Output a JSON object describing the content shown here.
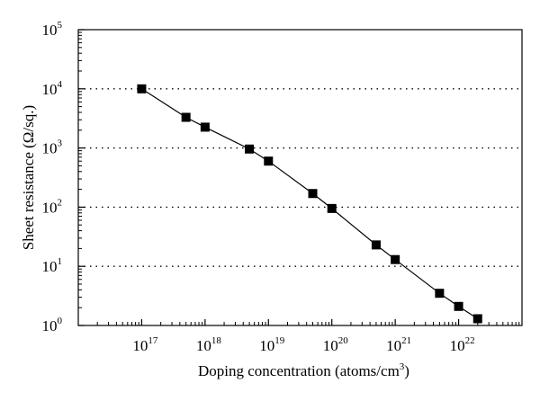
{
  "chart_data": {
    "type": "line",
    "xlabel": "Doping concentration (atoms/cm",
    "xlabel_unit_exp": "3",
    "xlabel_close": ")",
    "ylabel": "Sheet resistance (Ω/sq.)",
    "x_scale": "log",
    "y_scale": "log",
    "xlim": [
      1e+16,
      1e+23
    ],
    "ylim": [
      1,
      100000
    ],
    "x_ticks": [
      {
        "base": "10",
        "exp": "17",
        "value": 1e+17
      },
      {
        "base": "10",
        "exp": "18",
        "value": 1e+18
      },
      {
        "base": "10",
        "exp": "19",
        "value": 1e+19
      },
      {
        "base": "10",
        "exp": "20",
        "value": 1e+20
      },
      {
        "base": "10",
        "exp": "21",
        "value": 1e+21
      },
      {
        "base": "10",
        "exp": "22",
        "value": 1e+22
      }
    ],
    "y_ticks": [
      {
        "base": "10",
        "exp": "0",
        "value": 1
      },
      {
        "base": "10",
        "exp": "1",
        "value": 10
      },
      {
        "base": "10",
        "exp": "2",
        "value": 100
      },
      {
        "base": "10",
        "exp": "3",
        "value": 1000
      },
      {
        "base": "10",
        "exp": "4",
        "value": 10000
      },
      {
        "base": "10",
        "exp": "5",
        "value": 100000
      }
    ],
    "grid": "horizontal dotted",
    "series": [
      {
        "marker": "square",
        "color": "#000000",
        "x": [
          1e+17,
          5e+17,
          1e+18,
          5e+18,
          1e+19,
          5e+19,
          1e+20,
          5e+20,
          1e+21,
          5e+21,
          1e+22,
          2e+22
        ],
        "y": [
          10000,
          3300,
          2250,
          960,
          600,
          170,
          95,
          23,
          13,
          3.5,
          2.1,
          1.3
        ]
      }
    ]
  }
}
